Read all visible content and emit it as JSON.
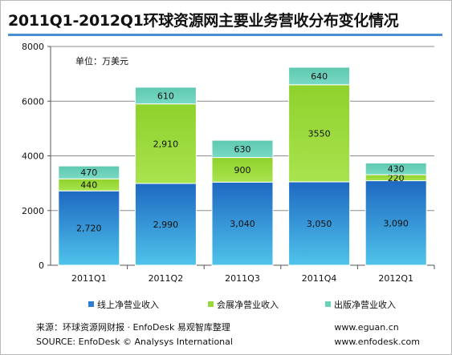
{
  "page": {
    "title": "2011Q1-2012Q1环球资源网主要业务营收分布变化情况",
    "unit_note": "单位：万美元",
    "source_line": "来源：环球资源网财报 · EnfoDesk 易观智库整理",
    "source_en": "SOURCE: EnfoDesk © Analysys International",
    "site1": "www.eguan.cn",
    "site2": "www.enfodesk.com"
  },
  "colors": {
    "title_rule": "#4a8fd3",
    "series": [
      "#2e7fd3",
      "#9ad93a",
      "#6ad0b8"
    ]
  },
  "chart_data": {
    "type": "bar",
    "stacked": true,
    "title": "2011Q1-2012Q1环球资源网主要业务营收分布变化情况",
    "xlabel": "",
    "ylabel": "",
    "unit": "万美元",
    "categories": [
      "2011Q1",
      "2011Q2",
      "2011Q3",
      "2011Q4",
      "2012Q1"
    ],
    "ylim": [
      0,
      8000
    ],
    "yticks": [
      0,
      2000,
      4000,
      6000,
      8000
    ],
    "grid": true,
    "legend_position": "bottom",
    "series": [
      {
        "name": "线上净营业收入",
        "values": [
          2720,
          2990,
          3040,
          3050,
          3090
        ],
        "labels": [
          "2,720",
          "2,990",
          "3,040",
          "3,050",
          "3,090"
        ]
      },
      {
        "name": "会展净营业收入",
        "values": [
          440,
          2910,
          900,
          3550,
          220
        ],
        "labels": [
          "440",
          "2,910",
          "900",
          "3550",
          "220"
        ]
      },
      {
        "name": "出版净营业收入",
        "values": [
          470,
          610,
          630,
          640,
          430
        ],
        "labels": [
          "470",
          "610",
          "630",
          "640",
          "430"
        ]
      }
    ]
  }
}
